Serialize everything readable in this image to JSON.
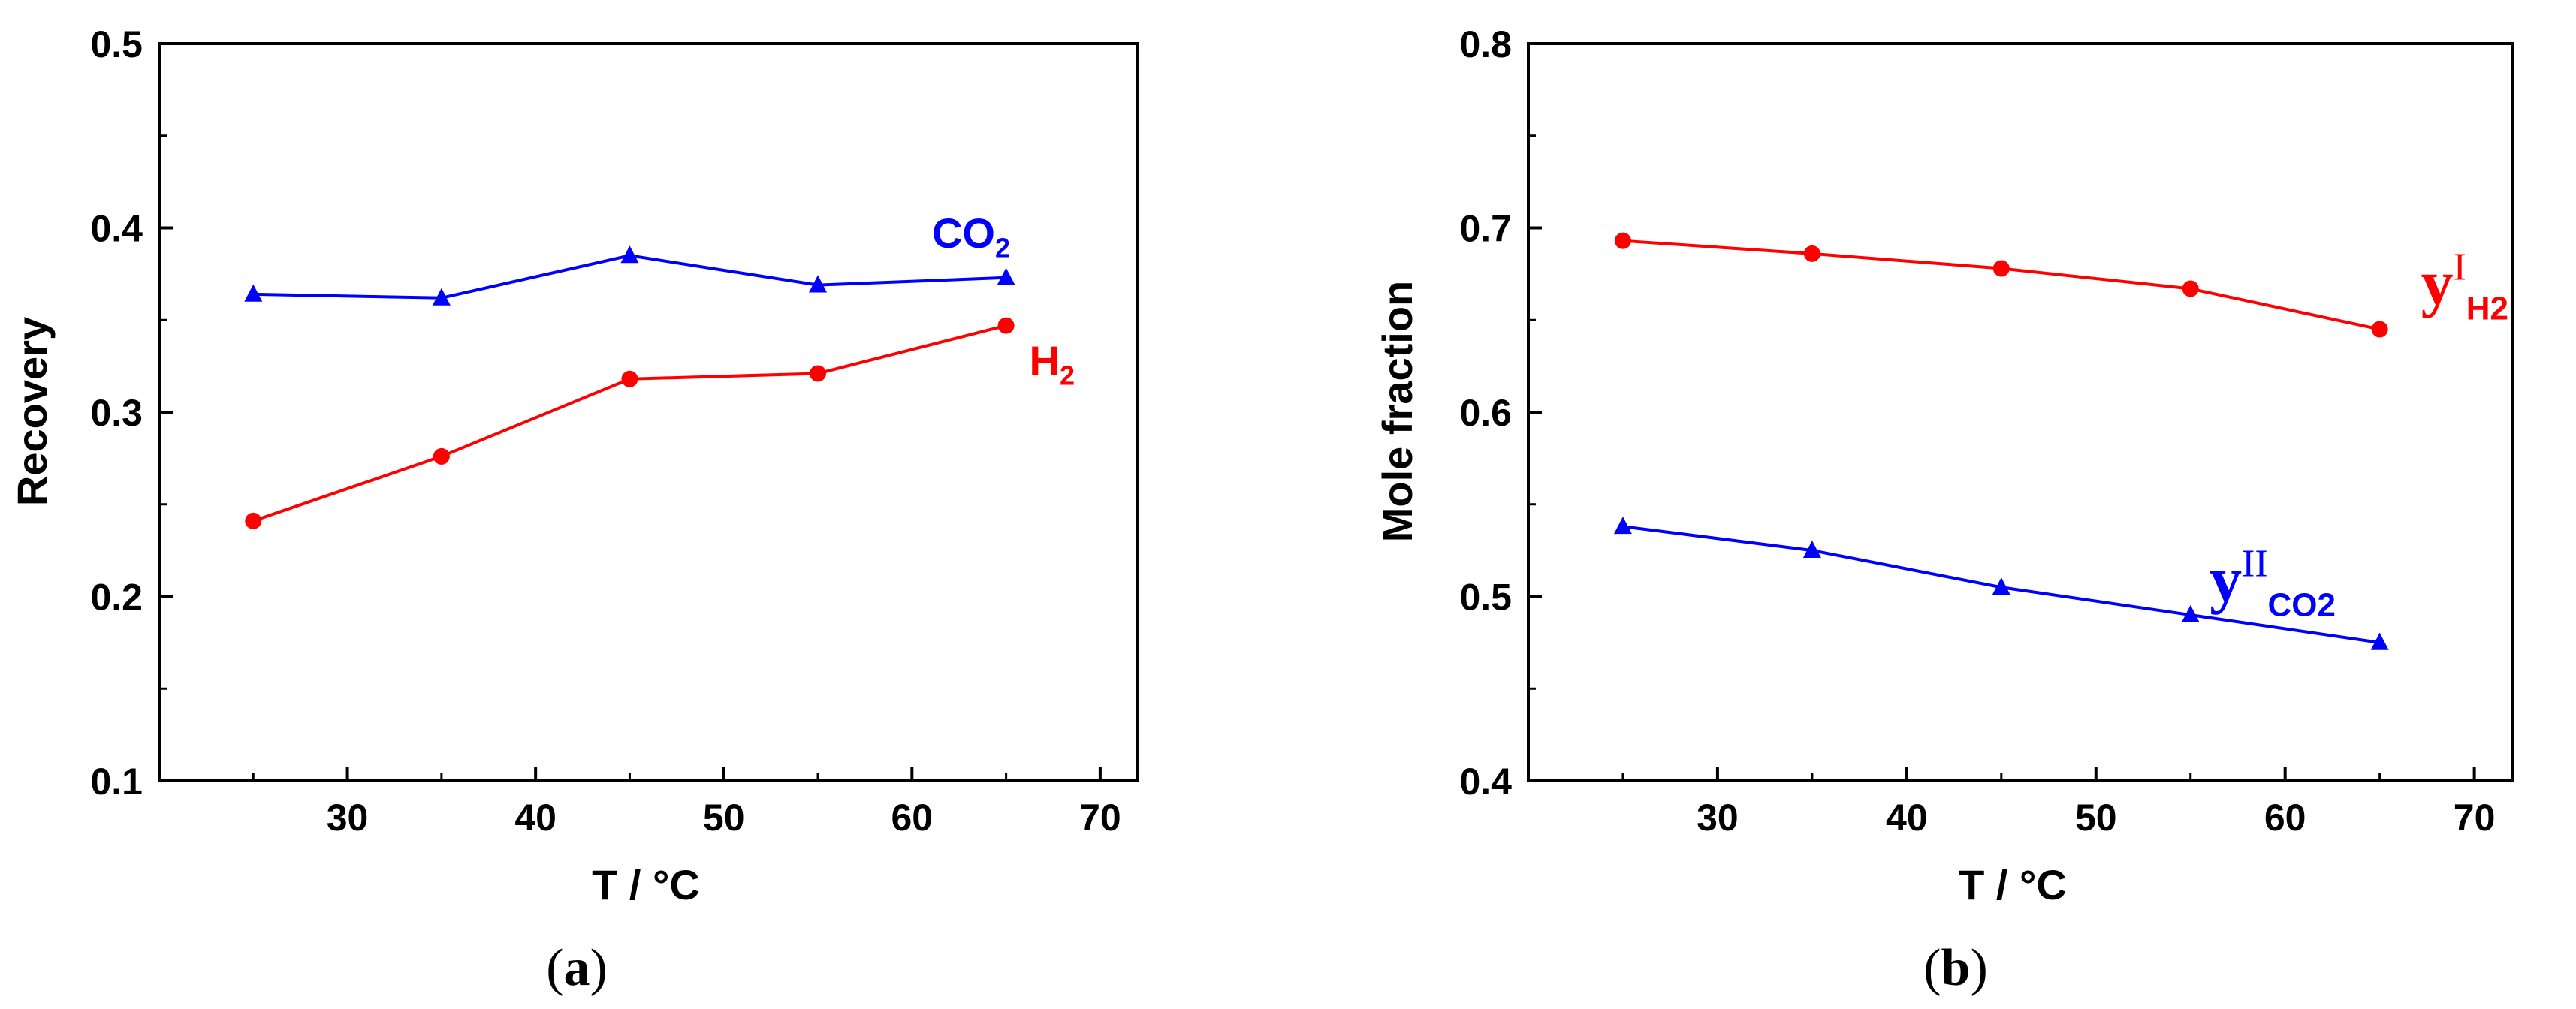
{
  "chart_data": [
    {
      "type": "line",
      "panel_label": "a",
      "x": [
        25,
        35,
        45,
        55,
        65
      ],
      "xlabel": "T / °C",
      "ylabel": "Recovery",
      "xlim": [
        20,
        72
      ],
      "ylim": [
        0.1,
        0.5
      ],
      "xticks": [
        "30",
        "40",
        "50",
        "60",
        "70"
      ],
      "yticks": [
        "0.1",
        "0.2",
        "0.3",
        "0.4",
        "0.5"
      ],
      "grid": false,
      "series": [
        {
          "name": "CO2",
          "label": {
            "base": "CO",
            "sub": "2",
            "sup": ""
          },
          "color": "#0000ff",
          "marker": "triangle",
          "values": [
            0.364,
            0.362,
            0.385,
            0.369,
            0.373
          ]
        },
        {
          "name": "H2",
          "label": {
            "base": "H",
            "sub": "2",
            "sup": ""
          },
          "color": "#ff0000",
          "marker": "circle",
          "values": [
            0.241,
            0.276,
            0.318,
            0.321,
            0.347
          ]
        }
      ]
    },
    {
      "type": "line",
      "panel_label": "b",
      "x": [
        25,
        35,
        45,
        55,
        65
      ],
      "xlabel": "T / °C",
      "ylabel": "Mole fraction",
      "xlim": [
        20,
        72
      ],
      "ylim": [
        0.4,
        0.8
      ],
      "xticks": [
        "30",
        "40",
        "50",
        "60",
        "70"
      ],
      "yticks": [
        "0.4",
        "0.5",
        "0.6",
        "0.7",
        "0.8"
      ],
      "grid": false,
      "series": [
        {
          "name": "yIH2",
          "label": {
            "base": "y",
            "sup": "I",
            "sub": "H2"
          },
          "color": "#ff0000",
          "marker": "circle",
          "values": [
            0.693,
            0.686,
            0.678,
            0.667,
            0.645
          ]
        },
        {
          "name": "yIICO2",
          "label": {
            "base": "y",
            "sup": "II",
            "sub": "CO2"
          },
          "color": "#0000ff",
          "marker": "triangle",
          "values": [
            0.538,
            0.525,
            0.505,
            0.49,
            0.475
          ]
        }
      ]
    }
  ]
}
